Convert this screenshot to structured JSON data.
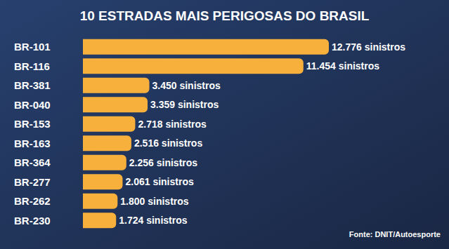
{
  "chart_data": {
    "type": "bar",
    "title": "10 ESTRADAS MAIS PERIGOSAS DO BRASIL",
    "annotations": [
      "Fonte: DNIT/Autoesporte"
    ],
    "orientation": "horizontal",
    "categories": [
      "BR-101",
      "BR-116",
      "BR-381",
      "BR-040",
      "BR-153",
      "BR-163",
      "BR-364",
      "BR-277",
      "BR-262",
      "BR-230"
    ],
    "values": [
      12776,
      11454,
      3450,
      3359,
      2718,
      2516,
      2256,
      2061,
      1800,
      1724
    ],
    "value_labels": [
      "12.776 sinistros",
      "11.454 sinistros",
      "3.450 sinistros",
      "3.359 sinistros",
      "2.718 sinistros",
      "2.516 sinistros",
      "2.256 sinistros",
      "2.061 sinistros",
      "1.800 sinistros",
      "1.724 sinistros"
    ],
    "color": "#f8b03c",
    "data_labels": true,
    "tick_labels": "y",
    "grid": false
  }
}
